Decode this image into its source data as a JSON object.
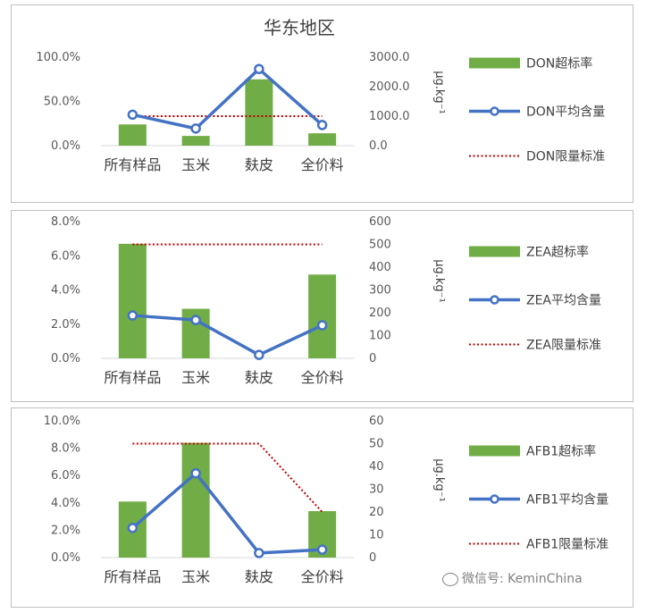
{
  "colors": {
    "bar": "#70ad47",
    "line": "#4472c4",
    "limit": "#c00000"
  },
  "watermark": {
    "text": "微信号: KeminChina",
    "icon": "wechat-icon"
  },
  "chart_data": [
    {
      "type": "bar",
      "title": "华东地区",
      "categories": [
        "所有样品",
        "玉米",
        "麸皮",
        "全价料"
      ],
      "y_left": {
        "ticks": [
          "0.0%",
          "50.0%",
          "100.0%"
        ],
        "range": [
          0,
          100
        ]
      },
      "y_right": {
        "ticks": [
          "0.0",
          "1000.0",
          "2000.0",
          "3000.0"
        ],
        "range": [
          0,
          3000
        ],
        "label": "μg.kg⁻¹"
      },
      "series": [
        {
          "name": "DON超标率",
          "kind": "bar",
          "axis": "left",
          "values": [
            24,
            11,
            75,
            14
          ]
        },
        {
          "name": "DON平均含量",
          "kind": "line",
          "axis": "right",
          "values": [
            1050,
            580,
            2600,
            700
          ]
        },
        {
          "name": "DON限量标准",
          "kind": "dotted",
          "axis": "right",
          "values": [
            1000,
            1000,
            1000,
            1000
          ]
        }
      ]
    },
    {
      "type": "bar",
      "title": "",
      "categories": [
        "所有样品",
        "玉米",
        "麸皮",
        "全价料"
      ],
      "y_left": {
        "ticks": [
          "0.0%",
          "2.0%",
          "4.0%",
          "6.0%",
          "8.0%"
        ],
        "range": [
          0,
          8
        ]
      },
      "y_right": {
        "ticks": [
          "0",
          "100",
          "200",
          "300",
          "400",
          "500",
          "600"
        ],
        "range": [
          0,
          600
        ],
        "label": "μg.kg⁻¹"
      },
      "series": [
        {
          "name": "ZEA超标率",
          "kind": "bar",
          "axis": "left",
          "values": [
            6.7,
            2.9,
            0,
            4.9
          ]
        },
        {
          "name": "ZEA平均含量",
          "kind": "line",
          "axis": "right",
          "values": [
            188,
            168,
            15,
            145
          ]
        },
        {
          "name": "ZEA限量标准",
          "kind": "dotted",
          "axis": "right",
          "values": [
            500,
            500,
            500,
            500
          ]
        }
      ]
    },
    {
      "type": "bar",
      "title": "",
      "categories": [
        "所有样品",
        "玉米",
        "麸皮",
        "全价料"
      ],
      "y_left": {
        "ticks": [
          "0.0%",
          "2.0%",
          "4.0%",
          "6.0%",
          "8.0%",
          "10.0%"
        ],
        "range": [
          0,
          10
        ]
      },
      "y_right": {
        "ticks": [
          "0",
          "10",
          "20",
          "30",
          "40",
          "50",
          "60"
        ],
        "range": [
          0,
          60
        ],
        "label": "μg.kg⁻¹"
      },
      "series": [
        {
          "name": "AFB1超标率",
          "kind": "bar",
          "axis": "left",
          "values": [
            4.1,
            8.4,
            0,
            3.4
          ]
        },
        {
          "name": "AFB1平均含量",
          "kind": "line",
          "axis": "right",
          "values": [
            13,
            37,
            2,
            3.5
          ]
        },
        {
          "name": "AFB1限量标准",
          "kind": "dotted",
          "axis": "right",
          "values": [
            50,
            50,
            50,
            20
          ]
        }
      ]
    }
  ]
}
